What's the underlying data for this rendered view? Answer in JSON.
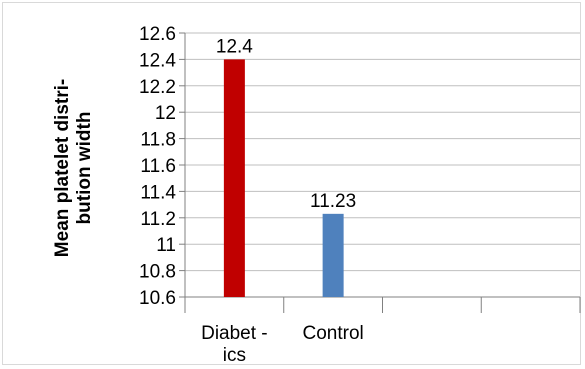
{
  "chart_data": {
    "type": "bar",
    "categories": [
      [
        "Diabet -",
        "ics"
      ],
      [
        "Control"
      ]
    ],
    "values": [
      12.4,
      11.23
    ],
    "data_labels": [
      "12.4",
      "11.23"
    ],
    "colors": [
      "#c00000",
      "#4f81bd"
    ],
    "ylabel": [
      "Mean platelet distri-",
      "bution width"
    ],
    "ylim": [
      10.6,
      12.6
    ],
    "yticks": [
      "10.6",
      "10.8",
      "11",
      "11.2",
      "11.4",
      "11.6",
      "11.8",
      "12",
      "12.2",
      "12.4",
      "12.6"
    ],
    "grid": true,
    "legend": "none",
    "category_slots": 4
  }
}
